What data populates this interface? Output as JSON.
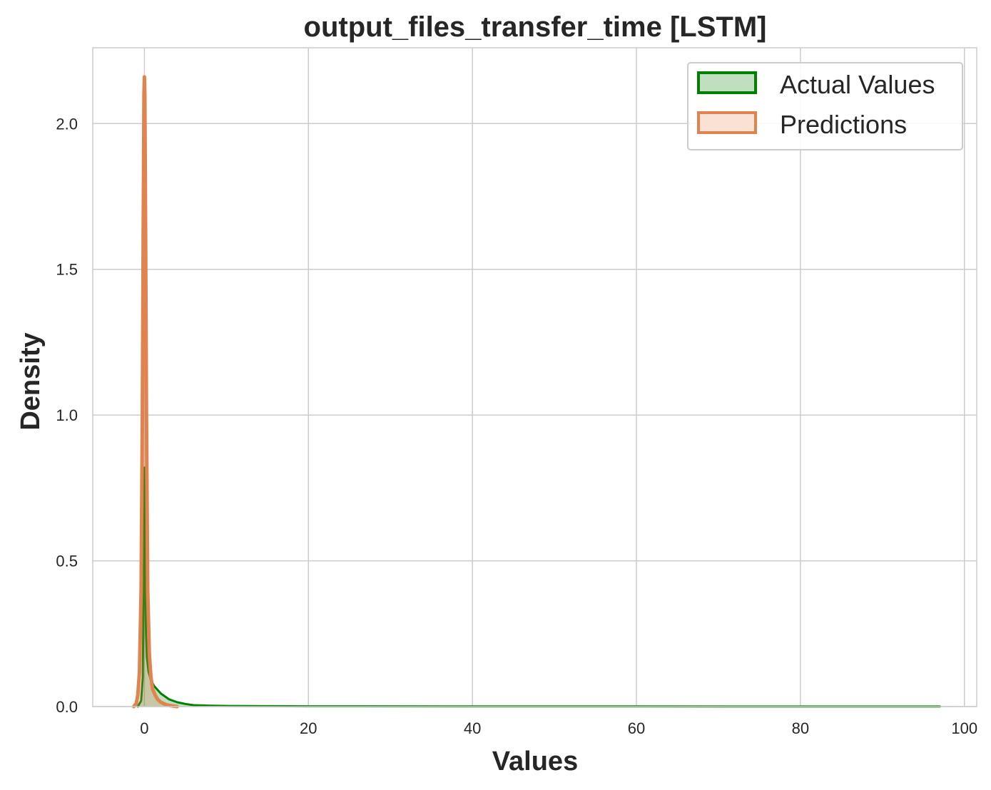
{
  "chart_data": {
    "type": "kde",
    "title": "output_files_transfer_time [LSTM]",
    "xlabel": "Values",
    "ylabel": "Density",
    "xlim": [
      -6.3,
      101.5
    ],
    "ylim": [
      0,
      2.26
    ],
    "xticks": [
      0,
      20,
      40,
      60,
      80,
      100
    ],
    "xtick_labels": [
      "0",
      "20",
      "40",
      "60",
      "80",
      "100"
    ],
    "yticks": [
      0.0,
      0.5,
      1.0,
      1.5,
      2.0
    ],
    "ytick_labels": [
      "0.0",
      "0.5",
      "1.0",
      "1.5",
      "2.0"
    ],
    "grid": true,
    "legend_position": "top-right",
    "series": [
      {
        "name": "Actual Values",
        "color": "#008000",
        "fill": "#bfdfbf",
        "x": [
          -0.8,
          -0.4,
          -0.2,
          -0.1,
          0,
          0.05,
          0.1,
          0.2,
          0.3,
          0.5,
          0.8,
          1.2,
          2,
          3,
          4,
          5,
          6,
          8,
          10,
          15,
          20,
          40,
          60,
          80,
          97
        ],
        "y": [
          0,
          0.02,
          0.1,
          0.4,
          0.82,
          0.7,
          0.42,
          0.25,
          0.17,
          0.12,
          0.09,
          0.07,
          0.045,
          0.025,
          0.015,
          0.009,
          0.005,
          0.003,
          0.002,
          0.0015,
          0.001,
          0.0007,
          0.0005,
          0.0003,
          0.0002
        ]
      },
      {
        "name": "Predictions",
        "color": "#e1834e",
        "fill": "#f9e1d3",
        "x": [
          -1.3,
          -1,
          -0.8,
          -0.6,
          -0.4,
          -0.25,
          -0.15,
          -0.05,
          0,
          0.05,
          0.15,
          0.25,
          0.4,
          0.6,
          0.8,
          1,
          1.3,
          1.6,
          2,
          2.6,
          3.2,
          4
        ],
        "y": [
          0,
          0.01,
          0.04,
          0.12,
          0.4,
          1.0,
          1.6,
          2.1,
          2.16,
          2.1,
          1.6,
          1.0,
          0.4,
          0.18,
          0.1,
          0.06,
          0.04,
          0.025,
          0.015,
          0.007,
          0.003,
          0
        ]
      }
    ]
  }
}
